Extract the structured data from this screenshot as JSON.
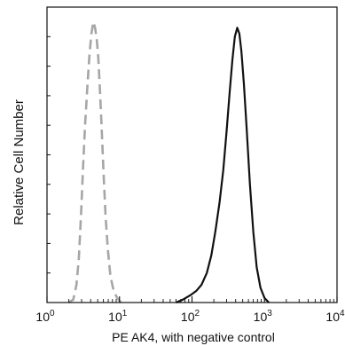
{
  "chart_data": {
    "type": "line",
    "title": "",
    "xlabel": "PE AK4, with negative control",
    "ylabel": "Relative Cell Number",
    "x_scale": "log",
    "xlim": [
      1,
      10000
    ],
    "x_ticks": [
      {
        "value": 1,
        "base": "10",
        "exp": "0"
      },
      {
        "value": 10,
        "base": "10",
        "exp": "1"
      },
      {
        "value": 100,
        "base": "10",
        "exp": "2"
      },
      {
        "value": 1000,
        "base": "10",
        "exp": "3"
      },
      {
        "value": 10000,
        "base": "10",
        "exp": "4"
      }
    ],
    "ylim": [
      0,
      1
    ],
    "y_tick_labels": "none",
    "grid": false,
    "legend": "none",
    "series": [
      {
        "style": "dashed",
        "color": "#a6a6a6",
        "points": [
          [
            2.0,
            0.0
          ],
          [
            2.3,
            0.01
          ],
          [
            2.55,
            0.06
          ],
          [
            2.75,
            0.15
          ],
          [
            2.95,
            0.3
          ],
          [
            3.15,
            0.46
          ],
          [
            3.35,
            0.6
          ],
          [
            3.6,
            0.73
          ],
          [
            3.85,
            0.84
          ],
          [
            4.1,
            0.91
          ],
          [
            4.35,
            0.95
          ],
          [
            4.6,
            0.93
          ],
          [
            4.85,
            0.89
          ],
          [
            5.1,
            0.83
          ],
          [
            5.35,
            0.73
          ],
          [
            5.65,
            0.6
          ],
          [
            6.0,
            0.45
          ],
          [
            6.4,
            0.3
          ],
          [
            6.9,
            0.18
          ],
          [
            7.5,
            0.09
          ],
          [
            8.3,
            0.04
          ],
          [
            9.3,
            0.015
          ],
          [
            10.5,
            0.0
          ]
        ]
      },
      {
        "style": "solid",
        "color": "#111111",
        "points": [
          [
            60,
            0.0
          ],
          [
            75,
            0.01
          ],
          [
            95,
            0.025
          ],
          [
            115,
            0.04
          ],
          [
            135,
            0.06
          ],
          [
            160,
            0.1
          ],
          [
            185,
            0.16
          ],
          [
            210,
            0.24
          ],
          [
            240,
            0.34
          ],
          [
            270,
            0.45
          ],
          [
            300,
            0.58
          ],
          [
            330,
            0.71
          ],
          [
            360,
            0.82
          ],
          [
            390,
            0.9
          ],
          [
            420,
            0.93
          ],
          [
            450,
            0.91
          ],
          [
            480,
            0.85
          ],
          [
            520,
            0.74
          ],
          [
            570,
            0.58
          ],
          [
            630,
            0.4
          ],
          [
            700,
            0.24
          ],
          [
            780,
            0.12
          ],
          [
            880,
            0.05
          ],
          [
            1000,
            0.015
          ],
          [
            1150,
            0.0
          ]
        ]
      }
    ]
  }
}
